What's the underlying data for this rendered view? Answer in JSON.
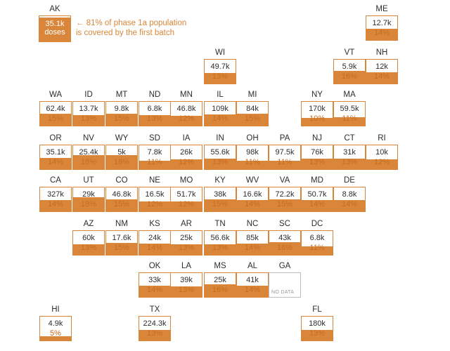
{
  "accent_color": "#d9863a",
  "legend": {
    "state": "AK",
    "doses": "35.1k",
    "doses_word": "doses",
    "fill_fraction": 1.0,
    "note_line1": "← 81% of phase 1a population",
    "note_line2": "is covered by the first batch"
  },
  "states": [
    {
      "abbr": "ME",
      "doses": "12.7k",
      "pct": "14%",
      "value": 14,
      "col": 10,
      "row": 0
    },
    {
      "abbr": "WI",
      "doses": "49.7k",
      "pct": "13%",
      "value": 13,
      "col": 5,
      "row": 1
    },
    {
      "abbr": "VT",
      "doses": "5.9k",
      "pct": "16%",
      "value": 16,
      "col": 9,
      "row": 1
    },
    {
      "abbr": "NH",
      "doses": "12k",
      "pct": "14%",
      "value": 14,
      "col": 10,
      "row": 1
    },
    {
      "abbr": "WA",
      "doses": "62.4k",
      "pct": "15%",
      "value": 15,
      "col": 0,
      "row": 2
    },
    {
      "abbr": "ID",
      "doses": "13.7k",
      "pct": "13%",
      "value": 13,
      "col": 1,
      "row": 2
    },
    {
      "abbr": "MT",
      "doses": "9.8k",
      "pct": "15%",
      "value": 15,
      "col": 2,
      "row": 2
    },
    {
      "abbr": "ND",
      "doses": "6.8k",
      "pct": "13%",
      "value": 13,
      "col": 3,
      "row": 2
    },
    {
      "abbr": "MN",
      "doses": "46.8k",
      "pct": "12%",
      "value": 12,
      "col": 4,
      "row": 2
    },
    {
      "abbr": "IL",
      "doses": "109k",
      "pct": "14%",
      "value": 14,
      "col": 5,
      "row": 2
    },
    {
      "abbr": "MI",
      "doses": "84k",
      "pct": "15%",
      "value": 15,
      "col": 6,
      "row": 2
    },
    {
      "abbr": "NY",
      "doses": "170k",
      "pct": "10%",
      "value": 10,
      "col": 8,
      "row": 2
    },
    {
      "abbr": "MA",
      "doses": "59.5k",
      "pct": "11%",
      "value": 11,
      "col": 9,
      "row": 2
    },
    {
      "abbr": "OR",
      "doses": "35.1k",
      "pct": "14%",
      "value": 14,
      "col": 0,
      "row": 3
    },
    {
      "abbr": "NV",
      "doses": "25.4k",
      "pct": "18%",
      "value": 18,
      "col": 1,
      "row": 3
    },
    {
      "abbr": "WY",
      "doses": "5k",
      "pct": "18%",
      "value": 18,
      "col": 2,
      "row": 3
    },
    {
      "abbr": "SD",
      "doses": "7.8k",
      "pct": "11%",
      "value": 11,
      "col": 3,
      "row": 3
    },
    {
      "abbr": "IA",
      "doses": "26k",
      "pct": "12%",
      "value": 12,
      "col": 4,
      "row": 3
    },
    {
      "abbr": "IN",
      "doses": "55.6k",
      "pct": "13%",
      "value": 13,
      "col": 5,
      "row": 3
    },
    {
      "abbr": "OH",
      "doses": "98k",
      "pct": "11%",
      "value": 11,
      "col": 6,
      "row": 3
    },
    {
      "abbr": "PA",
      "doses": "97.5k",
      "pct": "11%",
      "value": 11,
      "col": 7,
      "row": 3
    },
    {
      "abbr": "NJ",
      "doses": "76k",
      "pct": "13%",
      "value": 13,
      "col": 8,
      "row": 3
    },
    {
      "abbr": "CT",
      "doses": "31k",
      "pct": "13%",
      "value": 13,
      "col": 9,
      "row": 3
    },
    {
      "abbr": "RI",
      "doses": "10k",
      "pct": "12%",
      "value": 12,
      "col": 10,
      "row": 3
    },
    {
      "abbr": "CA",
      "doses": "327k",
      "pct": "14%",
      "value": 14,
      "col": 0,
      "row": 4
    },
    {
      "abbr": "UT",
      "doses": "29k",
      "pct": "18%",
      "value": 18,
      "col": 1,
      "row": 4
    },
    {
      "abbr": "CO",
      "doses": "46.8k",
      "pct": "15%",
      "value": 15,
      "col": 2,
      "row": 4
    },
    {
      "abbr": "NE",
      "doses": "16.5k",
      "pct": "12%",
      "value": 12,
      "col": 3,
      "row": 4
    },
    {
      "abbr": "MO",
      "doses": "51.7k",
      "pct": "12%",
      "value": 12,
      "col": 4,
      "row": 4
    },
    {
      "abbr": "KY",
      "doses": "38k",
      "pct": "15%",
      "value": 15,
      "col": 5,
      "row": 4
    },
    {
      "abbr": "WV",
      "doses": "16.6k",
      "pct": "14%",
      "value": 14,
      "col": 6,
      "row": 4
    },
    {
      "abbr": "VA",
      "doses": "72.2k",
      "pct": "15%",
      "value": 15,
      "col": 7,
      "row": 4
    },
    {
      "abbr": "MD",
      "doses": "50.7k",
      "pct": "14%",
      "value": 14,
      "col": 8,
      "row": 4
    },
    {
      "abbr": "DE",
      "doses": "8.8k",
      "pct": "14%",
      "value": 14,
      "col": 9,
      "row": 4
    },
    {
      "abbr": "AZ",
      "doses": "60k",
      "pct": "13%",
      "value": 13,
      "col": 1,
      "row": 5
    },
    {
      "abbr": "NM",
      "doses": "17.6k",
      "pct": "15%",
      "value": 15,
      "col": 2,
      "row": 5
    },
    {
      "abbr": "KS",
      "doses": "24k",
      "pct": "14%",
      "value": 14,
      "col": 3,
      "row": 5
    },
    {
      "abbr": "AR",
      "doses": "25k",
      "pct": "13%",
      "value": 13,
      "col": 4,
      "row": 5
    },
    {
      "abbr": "TN",
      "doses": "56.6k",
      "pct": "13%",
      "value": 13,
      "col": 5,
      "row": 5
    },
    {
      "abbr": "NC",
      "doses": "85k",
      "pct": "14%",
      "value": 14,
      "col": 6,
      "row": 5
    },
    {
      "abbr": "SC",
      "doses": "43k",
      "pct": "16%",
      "value": 16,
      "col": 7,
      "row": 5
    },
    {
      "abbr": "DC",
      "doses": "6.8k",
      "pct": "11%",
      "value": 11,
      "col": 8,
      "row": 5
    },
    {
      "abbr": "OK",
      "doses": "33k",
      "pct": "14%",
      "value": 14,
      "col": 3,
      "row": 6
    },
    {
      "abbr": "LA",
      "doses": "39k",
      "pct": "13%",
      "value": 13,
      "col": 4,
      "row": 6
    },
    {
      "abbr": "MS",
      "doses": "25k",
      "pct": "16%",
      "value": 16,
      "col": 5,
      "row": 6
    },
    {
      "abbr": "AL",
      "doses": "41k",
      "pct": "14%",
      "value": 14,
      "col": 6,
      "row": 6
    },
    {
      "abbr": "GA",
      "doses": "",
      "pct": "",
      "value": null,
      "no_data": "NO DATA",
      "col": 7,
      "row": 6
    },
    {
      "abbr": "HI",
      "doses": "4.9k",
      "pct": "5%",
      "value": 5,
      "col": 0,
      "row": 7
    },
    {
      "abbr": "TX",
      "doses": "224.3k",
      "pct": "13%",
      "value": 13,
      "col": 3,
      "row": 7
    },
    {
      "abbr": "FL",
      "doses": "180k",
      "pct": "13%",
      "value": 13,
      "col": 8,
      "row": 7
    }
  ]
}
